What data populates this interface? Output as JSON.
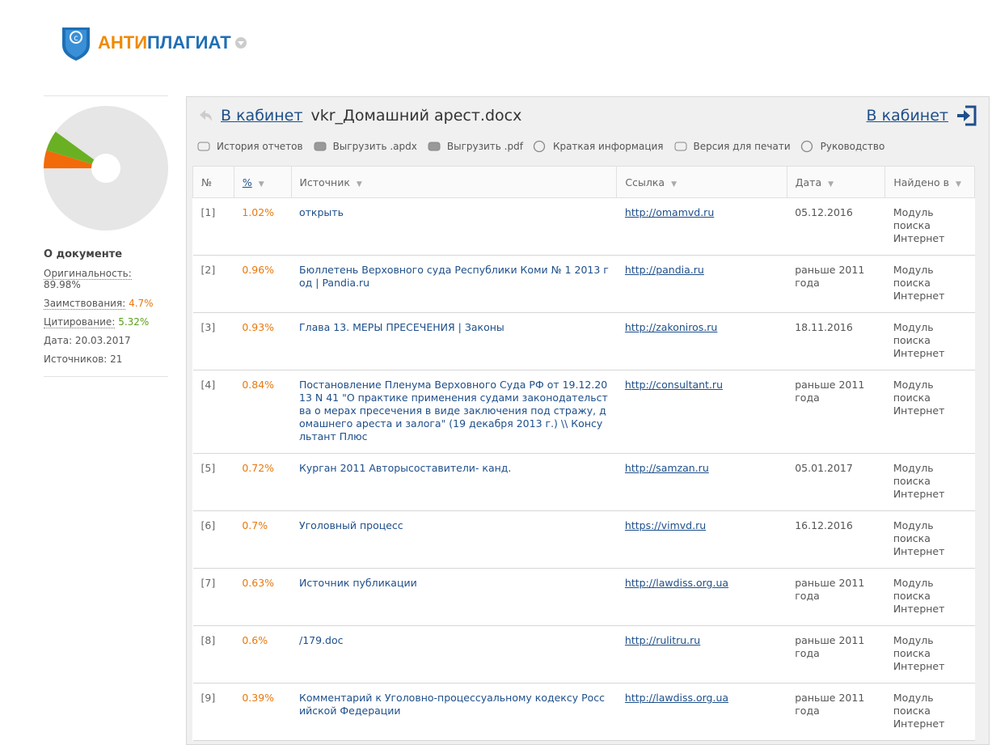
{
  "header": {
    "logo_parts": [
      "АНТИ",
      "ПЛАГИАТ"
    ]
  },
  "sidebar": {
    "title": "О документе",
    "stats": [
      {
        "label": "Оригинальность:",
        "value": 89.98,
        "value_label": "89.98%",
        "color": "#e6e6e6",
        "text_color": "#555555"
      },
      {
        "label": "Заимствования:",
        "value": 4.7,
        "value_label": "4.7%",
        "color": "#f26a0a",
        "text_color": "#e8780c"
      },
      {
        "label": "Цитирование:",
        "value": 5.32,
        "value_label": "5.32%",
        "color": "#6ab023",
        "text_color": "#5a9e1a"
      }
    ],
    "date": "Дата: 20.03.2017",
    "sources": "Источников: 21"
  },
  "panel": {
    "back_link": "В кабинет",
    "filename": "vkr_Домашний арест.docx",
    "right_link": "В кабинет",
    "toolbar": [
      "История отчетов",
      "Выгрузить .apdx",
      "Выгрузить .pdf",
      "Краткая информация",
      "Версия для печати",
      "Руководство"
    ]
  },
  "table": {
    "columns": [
      "№",
      "%",
      "Источник",
      "Ссылка",
      "Дата",
      "Найдено в"
    ],
    "rows": [
      [
        "[1]",
        "1.02%",
        "открыть",
        "http://omamvd.ru",
        "05.12.2016",
        "Модуль поиска Интернет"
      ],
      [
        "[2]",
        "0.96%",
        "Бюллетень Верховного суда Республики Коми № 1 2013 год | Pandia.ru",
        "http://pandia.ru",
        "раньше 2011 года",
        "Модуль поиска Интернет"
      ],
      [
        "[3]",
        "0.93%",
        "Глава 13. МЕРЫ ПРЕСЕЧЕНИЯ | Законы",
        "http://zakoniros.ru",
        "18.11.2016",
        "Модуль поиска Интернет"
      ],
      [
        "[4]",
        "0.84%",
        "Постановление Пленума Верховного Суда РФ от 19.12.2013 N 41 \"О практике применения судами законодательства о мерах пресечения в виде заключения под стражу, домашнего ареста и залога\" (19 декабря 2013 г.) \\\\ Консультант Плюс",
        "http://consultant.ru",
        "раньше 2011 года",
        "Модуль поиска Интернет"
      ],
      [
        "[5]",
        "0.72%",
        "Курган 2011 Авторысоставители- канд.",
        "http://samzan.ru",
        "05.01.2017",
        "Модуль поиска Интернет"
      ],
      [
        "[6]",
        "0.7%",
        "Уголовный процесс",
        "https://vimvd.ru",
        "16.12.2016",
        "Модуль поиска Интернет"
      ],
      [
        "[7]",
        "0.63%",
        "Источник публикации",
        "http://lawdiss.org.ua",
        "раньше 2011 года",
        "Модуль поиска Интернет"
      ],
      [
        "[8]",
        "0.6%",
        "/179.doc",
        "http://rulitru.ru",
        "раньше 2011 года",
        "Модуль поиска Интернет"
      ],
      [
        "[9]",
        "0.39%",
        "Комментарий к Уголовно-процессуальному кодексу Российской Федерации",
        "http://lawdiss.org.ua",
        "раньше 2011 года",
        "Модуль поиска Интернет"
      ]
    ]
  }
}
